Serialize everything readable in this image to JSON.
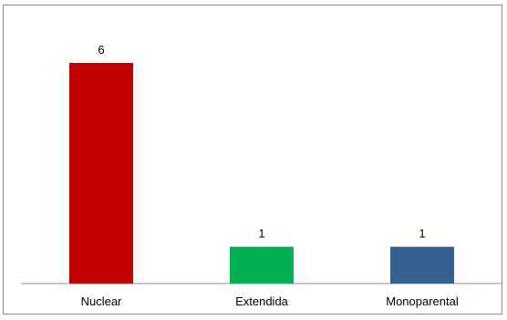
{
  "chart_data": {
    "type": "bar",
    "title": "",
    "xlabel": "",
    "ylabel": "",
    "categories": [
      "Nuclear",
      "Extendida",
      "Monoparental"
    ],
    "values": [
      6,
      1,
      1
    ],
    "data_labels": [
      "6",
      "1",
      "1"
    ],
    "colors": [
      "#c00000",
      "#00b050",
      "#376092"
    ],
    "ylim": [
      0,
      6
    ],
    "grid": false,
    "legend": "none"
  }
}
